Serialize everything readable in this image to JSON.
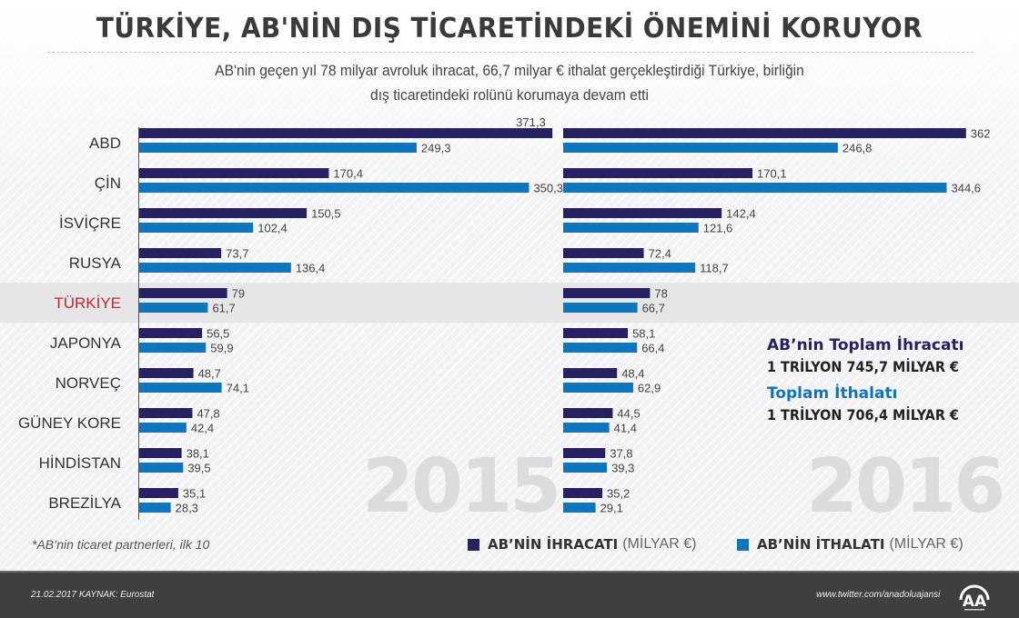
{
  "title": "TÜRKİYE, AB'NİN DIŞ TİCARETİNDEKİ ÖNEMİNİ KORUYOR",
  "subtitle_line1": "AB'nin geçen yıl 78 milyar avroluk ihracat, 66,7 milyar € ithalat gerçekleştirdiği Türkiye, birliğin",
  "subtitle_line2": "dış ticaretindeki rolünü korumaya devam etti",
  "colors": {
    "export": "#262262",
    "import": "#0f75bc",
    "highlight_label": "#c1272d"
  },
  "chart_data": [
    {
      "type": "bar",
      "orientation": "horizontal",
      "title": "2015",
      "categories": [
        "ABD",
        "ÇİN",
        "İSVİÇRE",
        "RUSYA",
        "TÜRKİYE",
        "JAPONYA",
        "NORVEÇ",
        "GÜNEY KORE",
        "HİNDİSTAN",
        "BREZİLYA"
      ],
      "highlight_category": "TÜRKİYE",
      "series": [
        {
          "name": "AB'NİN İHRACATI (MİLYAR €)",
          "values": [
            371.3,
            170.4,
            150.5,
            73.7,
            79,
            56.5,
            48.7,
            47.8,
            38.1,
            35.1
          ],
          "labels": [
            "371,3",
            "170,4",
            "150,5",
            "73,7",
            "79",
            "56,5",
            "48,7",
            "47,8",
            "38,1",
            "35,1"
          ]
        },
        {
          "name": "AB'NİN İTHALATI (MİLYAR €)",
          "values": [
            249.3,
            350.3,
            102.4,
            136.4,
            61.7,
            59.9,
            74.1,
            42.4,
            39.5,
            28.3
          ],
          "labels": [
            "249,3",
            "350,3",
            "102,4",
            "136,4",
            "61,7",
            "59,9",
            "74,1",
            "42,4",
            "39,5",
            "28,3"
          ]
        }
      ],
      "xlim": [
        0,
        372
      ],
      "grid": false
    },
    {
      "type": "bar",
      "orientation": "horizontal",
      "title": "2016",
      "categories": [
        "ABD",
        "ÇİN",
        "İSVİÇRE",
        "RUSYA",
        "TÜRKİYE",
        "JAPONYA",
        "NORVEÇ",
        "GÜNEY KORE",
        "HİNDİSTAN",
        "BREZİLYA"
      ],
      "highlight_category": "TÜRKİYE",
      "series": [
        {
          "name": "AB'NİN İHRACATI (MİLYAR €)",
          "values": [
            362,
            170.1,
            142.4,
            72.4,
            78,
            58.1,
            48.4,
            44.5,
            37.8,
            35.2
          ],
          "labels": [
            "362",
            "170,1",
            "142,4",
            "72,4",
            "78",
            "58,1",
            "48,4",
            "44,5",
            "37,8",
            "35,2"
          ]
        },
        {
          "name": "AB'NİN İTHALATI (MİLYAR €)",
          "values": [
            246.8,
            344.6,
            121.6,
            118.7,
            66.7,
            66.4,
            62.9,
            41.4,
            39.3,
            29.1
          ],
          "labels": [
            "246,8",
            "344,6",
            "121,6",
            "118,7",
            "66,7",
            "66,4",
            "62,9",
            "41,4",
            "39,3",
            "29,1"
          ]
        }
      ],
      "xlim": [
        0,
        372
      ],
      "grid": false
    }
  ],
  "totals": {
    "export_label": "AB’nin Toplam İhracatı",
    "export_value": "1 TRİLYON 745,7 MİLYAR €",
    "import_label": "Toplam İthalatı",
    "import_value": "1 TRİLYON 706,4 MİLYAR €"
  },
  "footnote": "*AB’nin ticaret partnerleri, ilk 10",
  "legend": {
    "export_bold": "AB’NİN İHRACATI",
    "export_unit": "(MİLYAR €)",
    "import_bold": "AB’NİN İTHALATI",
    "import_unit": "(MİLYAR €)"
  },
  "footer": {
    "date_source": "21.02.2017   KAYNAK: Eurostat",
    "twitter": "www.twitter.com/anadoluajansi",
    "logo": "AA"
  }
}
